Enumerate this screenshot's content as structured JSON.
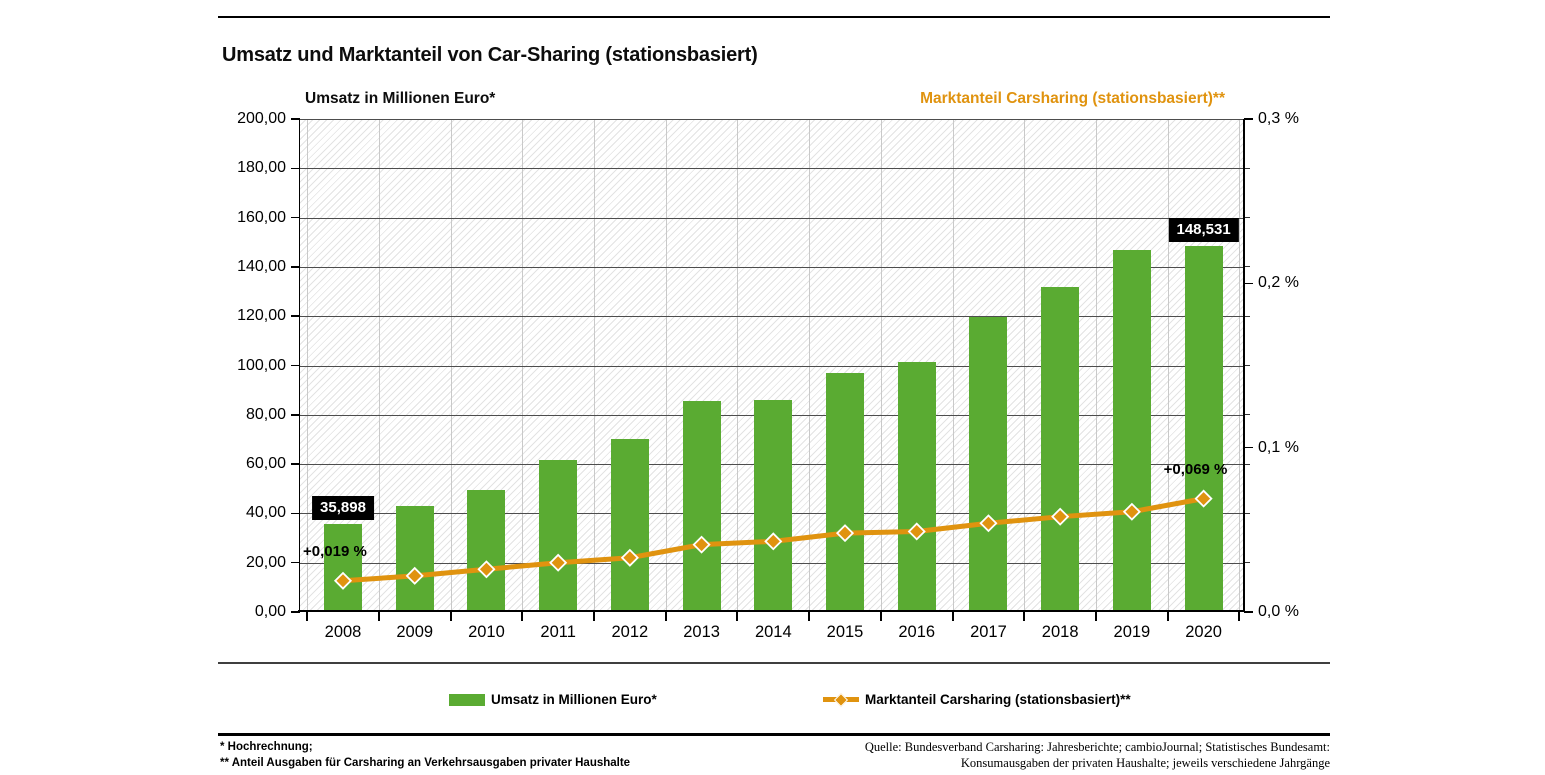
{
  "title": "Umsatz und Marktanteil von Car-Sharing (stationsbasiert)",
  "colors": {
    "bar_green": "#5aab32",
    "line_orange": "#e0930f",
    "grid_dark": "#4d4d4d",
    "grid_light": "#c9c9c9",
    "label_box_bg": "#000000",
    "label_box_text": "#ffffff"
  },
  "chart_data": {
    "type": "bar_line_combo",
    "categories": [
      "2008",
      "2009",
      "2010",
      "2011",
      "2012",
      "2013",
      "2014",
      "2015",
      "2016",
      "2017",
      "2018",
      "2019",
      "2020"
    ],
    "series": [
      {
        "name": "Umsatz in Millionen Euro*",
        "chart_type": "bar",
        "axis": "left",
        "color": "#5aab32",
        "values": [
          35.898,
          43,
          49.5,
          61.5,
          70,
          85.5,
          86,
          97,
          101.5,
          119.5,
          132,
          147,
          148.531
        ]
      },
      {
        "name": "Marktanteil Carsharing (stationsbasiert)**",
        "chart_type": "line",
        "axis": "right",
        "color": "#e0930f",
        "marker": "diamond",
        "values": [
          0.019,
          0.022,
          0.026,
          0.03,
          0.033,
          0.041,
          0.043,
          0.048,
          0.049,
          0.054,
          0.058,
          0.061,
          0.069
        ]
      }
    ],
    "left_axis": {
      "title": "Umsatz in Millionen Euro*",
      "min": 0,
      "max": 200,
      "step": 20,
      "tick_labels": [
        "0,00",
        "20,00",
        "40,00",
        "60,00",
        "80,00",
        "100,00",
        "120,00",
        "140,00",
        "160,00",
        "180,00",
        "200,00"
      ]
    },
    "right_axis": {
      "title": "Marktanteil Carsharing (stationsbasiert)**",
      "min": 0,
      "max": 0.3,
      "tick_labels": [
        "0,0 %",
        "0,1 %",
        "0,2 %",
        "0,3 %"
      ]
    },
    "annotations": {
      "bar_value_labels": [
        {
          "category": "2008",
          "text": "35,898"
        },
        {
          "category": "2020",
          "text": "148,531"
        }
      ],
      "line_value_labels": [
        {
          "category": "2008",
          "text": "+0,019 %"
        },
        {
          "category": "2020",
          "text": "+0,069 %"
        }
      ]
    },
    "grid": {
      "horizontal": true,
      "vertical": true
    },
    "legend_position": "bottom",
    "plot_background": "diagonal-hatch"
  },
  "legend": {
    "items": [
      {
        "label": "Umsatz in Millionen Euro*",
        "type": "bar",
        "color": "#5aab32"
      },
      {
        "label": "Marktanteil Carsharing (stationsbasiert)**",
        "type": "line",
        "color": "#e0930f"
      }
    ]
  },
  "footnotes": {
    "left": [
      "* Hochrechnung;",
      "** Anteil Ausgaben für Carsharing an Verkehrsausgaben privater Haushalte"
    ],
    "source": [
      "Quelle: Bundesverband Carsharing: Jahresberichte; cambioJournal; Statistisches Bundesamt:",
      "Konsumausgaben der privaten Haushalte; jeweils verschiedene Jahrgänge"
    ]
  }
}
